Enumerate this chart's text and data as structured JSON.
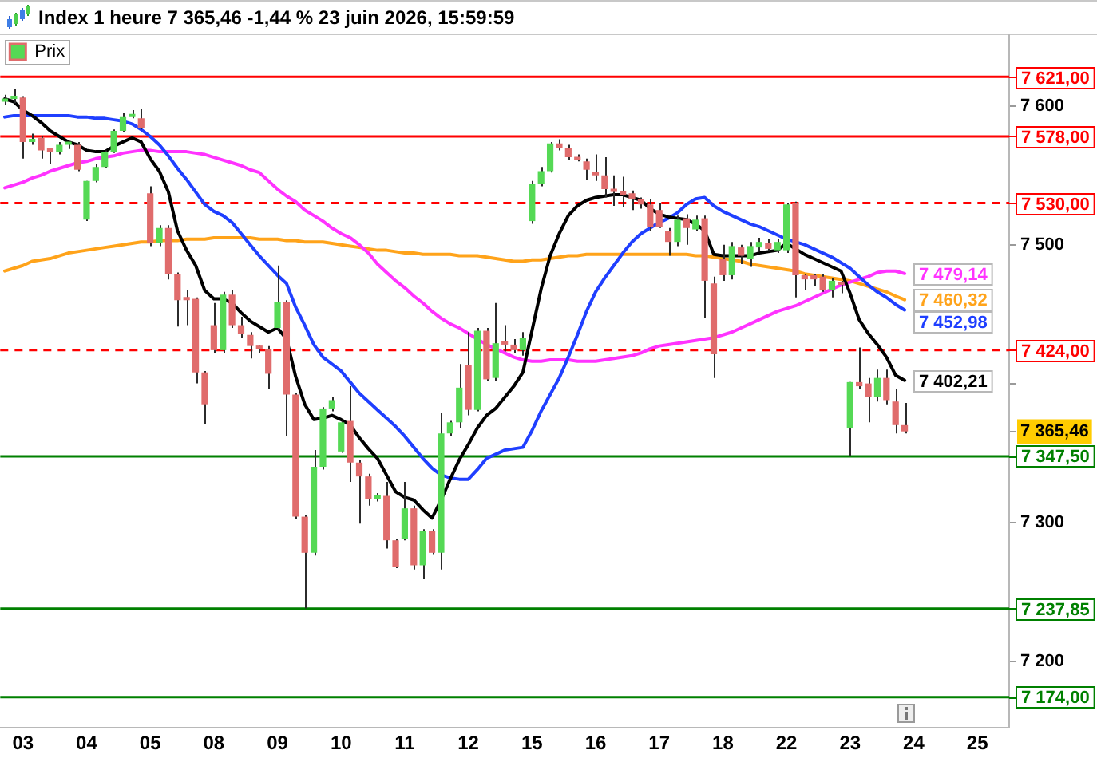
{
  "chart_data": {
    "type": "candlestick",
    "title": "Index 1 heure 7 365,46 -1,44 % 23 juin 2026, 15:59:59",
    "categories": [
      null,
      null,
      "03",
      null,
      null,
      null,
      null,
      null,
      null,
      "04",
      null,
      null,
      null,
      null,
      null,
      null,
      "05",
      null,
      null,
      null,
      null,
      null,
      null,
      "08",
      null,
      null,
      null,
      null,
      null,
      null,
      "09",
      null,
      null,
      null,
      null,
      null,
      null,
      "10",
      null,
      null,
      null,
      null,
      null,
      null,
      "11",
      null,
      null,
      null,
      null,
      null,
      null,
      "12",
      null,
      null,
      null,
      null,
      null,
      null,
      "15",
      null,
      null,
      null,
      null,
      null,
      null,
      "16",
      null,
      null,
      null,
      null,
      null,
      null,
      "17",
      null,
      null,
      null,
      null,
      null,
      null,
      "18",
      null,
      null,
      null,
      null,
      null,
      null,
      "22",
      null,
      null,
      null,
      null,
      null,
      null,
      "23",
      null,
      null,
      null,
      null,
      null,
      null,
      "24",
      null,
      null,
      null,
      null,
      null,
      null,
      "25",
      null,
      null,
      null
    ],
    "series": [
      {
        "name": "Prix",
        "ohlc": [
          [
            7603,
            7608,
            7601,
            7605
          ],
          [
            7605,
            7612,
            7602,
            7606
          ],
          [
            7606,
            7607,
            7562,
            7574
          ],
          [
            7574,
            7580,
            7572,
            7575
          ],
          [
            7577,
            7578,
            7562,
            7568
          ],
          [
            7568,
            7569,
            7558,
            7567
          ],
          [
            7567,
            7574,
            7565,
            7572
          ],
          [
            7572,
            7574,
            7569,
            7573
          ],
          [
            7572,
            7574,
            7553,
            7554
          ],
          [
            7518,
            7546,
            7517,
            7546
          ],
          [
            7546,
            7558,
            7545,
            7556
          ],
          [
            7556,
            7568,
            7555,
            7567
          ],
          [
            7567,
            7583,
            7566,
            7582
          ],
          [
            7582,
            7595,
            7581,
            7592
          ],
          [
            7592,
            7597,
            7591,
            7594
          ],
          [
            7591,
            7598,
            7583,
            7584
          ],
          [
            7537,
            7542,
            7499,
            7501
          ],
          [
            7501,
            7514,
            7499,
            7512
          ],
          [
            7512,
            7514,
            7475,
            7479
          ],
          [
            7479,
            7480,
            7441,
            7460
          ],
          [
            7461,
            7467,
            7442,
            7460
          ],
          [
            7461,
            7462,
            7400,
            7408
          ],
          [
            7408,
            7409,
            7371,
            7385
          ],
          [
            7442,
            7458,
            7422,
            7424
          ],
          [
            7424,
            7466,
            7422,
            7464
          ],
          [
            7464,
            7467,
            7440,
            7442
          ],
          [
            7442,
            7448,
            7433,
            7436
          ],
          [
            7435,
            7437,
            7418,
            7427
          ],
          [
            7426,
            7428,
            7422,
            7425
          ],
          [
            7425,
            7427,
            7396,
            7407
          ],
          [
            7440,
            7485,
            7438,
            7459
          ],
          [
            7459,
            7460,
            7362,
            7392
          ],
          [
            7392,
            7393,
            7302,
            7304
          ],
          [
            7304,
            7305,
            7238,
            7278
          ],
          [
            7278,
            7352,
            7276,
            7340
          ],
          [
            7340,
            7383,
            7338,
            7382
          ],
          [
            7382,
            7390,
            7380,
            7388
          ],
          [
            7351,
            7373,
            7350,
            7372
          ],
          [
            7373,
            7398,
            7329,
            7343
          ],
          [
            7343,
            7345,
            7299,
            7333
          ],
          [
            7333,
            7335,
            7312,
            7317
          ],
          [
            7317,
            7321,
            7315,
            7319
          ],
          [
            7319,
            7329,
            7281,
            7287
          ],
          [
            7287,
            7288,
            7267,
            7268
          ],
          [
            7288,
            7329,
            7287,
            7310
          ],
          [
            7310,
            7312,
            7266,
            7269
          ],
          [
            7269,
            7295,
            7259,
            7294
          ],
          [
            7294,
            7295,
            7277,
            7278
          ],
          [
            7278,
            7379,
            7266,
            7364
          ],
          [
            7364,
            7373,
            7362,
            7372
          ],
          [
            7372,
            7414,
            7368,
            7397
          ],
          [
            7413,
            7437,
            7377,
            7381
          ],
          [
            7381,
            7440,
            7380,
            7438
          ],
          [
            7438,
            7440,
            7402,
            7403
          ],
          [
            7404,
            7458,
            7402,
            7429
          ],
          [
            7430,
            7442,
            7423,
            7428
          ],
          [
            7428,
            7432,
            7422,
            7424
          ],
          [
            7424,
            7437,
            7420,
            7433
          ],
          [
            7517,
            7546,
            7515,
            7544
          ],
          [
            7544,
            7556,
            7542,
            7553
          ],
          [
            7553,
            7574,
            7552,
            7573
          ],
          [
            7573,
            7576,
            7568,
            7570
          ],
          [
            7570,
            7572,
            7561,
            7563
          ],
          [
            7563,
            7565,
            7560,
            7561
          ],
          [
            7560,
            7562,
            7547,
            7554
          ],
          [
            7551,
            7565,
            7546,
            7550
          ],
          [
            7550,
            7563,
            7534,
            7540
          ],
          [
            7540,
            7550,
            7528,
            7538
          ],
          [
            7538,
            7549,
            7527,
            7536
          ],
          [
            7537,
            7539,
            7525,
            7533
          ],
          [
            7533,
            7534,
            7526,
            7529
          ],
          [
            7529,
            7533,
            7510,
            7513
          ],
          [
            7525,
            7530,
            7512,
            7513
          ],
          [
            7510,
            7512,
            7492,
            7502
          ],
          [
            7502,
            7521,
            7499,
            7518
          ],
          [
            7519,
            7522,
            7500,
            7512
          ],
          [
            7511,
            7521,
            7510,
            7518
          ],
          [
            7519,
            7521,
            7447,
            7474
          ],
          [
            7472,
            7477,
            7404,
            7421
          ],
          [
            7490,
            7500,
            7474,
            7478
          ],
          [
            7478,
            7502,
            7475,
            7499
          ],
          [
            7498,
            7500,
            7486,
            7492
          ],
          [
            7490,
            7502,
            7484,
            7499
          ],
          [
            7498,
            7505,
            7495,
            7502
          ],
          [
            7501,
            7504,
            7495,
            7497
          ],
          [
            7496,
            7504,
            7494,
            7502
          ],
          [
            7496,
            7530,
            7494,
            7529
          ],
          [
            7530,
            7531,
            7462,
            7478
          ],
          [
            7478,
            7479,
            7467,
            7475
          ],
          [
            7478,
            7479,
            7470,
            7475
          ],
          [
            7477,
            7479,
            7466,
            7467
          ],
          [
            7467,
            7476,
            7462,
            7474
          ],
          [
            7472,
            7474,
            7465,
            7471
          ],
          [
            7368,
            7401,
            7348,
            7401
          ],
          [
            7401,
            7426,
            7396,
            7398
          ],
          [
            7400,
            7404,
            7372,
            7390
          ],
          [
            7390,
            7410,
            7387,
            7404
          ],
          [
            7404,
            7410,
            7385,
            7388
          ],
          [
            7387,
            7396,
            7364,
            7370
          ],
          [
            7370,
            7386,
            7364,
            7365.46
          ],
          null,
          null,
          null,
          null,
          null,
          null,
          null,
          null,
          null,
          null,
          null
        ],
        "colors": [
          "#55d955",
          "#55d955",
          "#e06c6c",
          "#55d955",
          "#e06c6c",
          "#e06c6c",
          "#55d955",
          "#55d955",
          "#e06c6c",
          "#55d955",
          "#55d955",
          "#55d955",
          "#55d955",
          "#55d955",
          "#55d955",
          "#e06c6c",
          "#e06c6c",
          "#55d955",
          "#e06c6c",
          "#e06c6c",
          "#e06c6c",
          "#e06c6c",
          "#e06c6c",
          "#e06c6c",
          "#55d955",
          "#e06c6c",
          "#e06c6c",
          "#e06c6c",
          "#e06c6c",
          "#e06c6c",
          "#55d955",
          "#e06c6c",
          "#e06c6c",
          "#e06c6c",
          "#55d955",
          "#55d955",
          "#55d955",
          "#55d955",
          "#e06c6c",
          "#e06c6c",
          "#e06c6c",
          "#55d955",
          "#e06c6c",
          "#e06c6c",
          "#55d955",
          "#e06c6c",
          "#55d955",
          "#e06c6c",
          "#55d955",
          "#55d955",
          "#55d955",
          "#e06c6c",
          "#55d955",
          "#e06c6c",
          "#55d955",
          "#e06c6c",
          "#e06c6c",
          "#55d955",
          "#55d955",
          "#55d955",
          "#55d955",
          "#e06c6c",
          "#e06c6c",
          "#e06c6c",
          "#e06c6c",
          "#e06c6c",
          "#e06c6c",
          "#e06c6c",
          "#e06c6c",
          "#e06c6c",
          "#e06c6c",
          "#e06c6c",
          "#e06c6c",
          "#e06c6c",
          "#55d955",
          "#e06c6c",
          "#55d955",
          "#e06c6c",
          "#e06c6c",
          "#e06c6c",
          "#55d955",
          "#e06c6c",
          "#55d955",
          "#55d955",
          "#e06c6c",
          "#55d955",
          "#55d955",
          "#e06c6c",
          "#e06c6c",
          "#e06c6c",
          "#e06c6c",
          "#55d955",
          "#e06c6c",
          "#55d955",
          "#e06c6c",
          "#e06c6c",
          "#55d955",
          "#e06c6c",
          "#e06c6c",
          "#e06c6c",
          null,
          null,
          null,
          null,
          null,
          null,
          null,
          null,
          null,
          null,
          null
        ]
      },
      {
        "type": "line",
        "color": "#000000",
        "values": [
          7605,
          7603,
          7597,
          7593,
          7588,
          7582,
          7578,
          7574,
          7572,
          7568,
          7567,
          7567,
          7571,
          7574,
          7577,
          7574,
          7562,
          7553,
          7538,
          7510,
          7496,
          7485,
          7467,
          7461,
          7461,
          7458,
          7451,
          7445,
          7441,
          7437,
          7440,
          7432,
          7405,
          7385,
          7374,
          7375,
          7377,
          7374,
          7370,
          7361,
          7353,
          7346,
          7334,
          7322,
          7318,
          7316,
          7309,
          7303,
          7316,
          7331,
          7345,
          7356,
          7368,
          7377,
          7382,
          7390,
          7398,
          7408,
          7438,
          7468,
          7492,
          7508,
          7521,
          7528,
          7532,
          7534,
          7535,
          7536,
          7536,
          7534,
          7532,
          7526,
          7522,
          7520,
          7519,
          7518,
          7515,
          7510,
          7493,
          7492,
          7492,
          7492,
          7492,
          7494,
          7495,
          7496,
          7501,
          7497,
          7493,
          7490,
          7487,
          7484,
          7481,
          7465,
          7446,
          7436,
          7428,
          7419,
          7406,
          7402.21,
          null,
          null,
          null,
          null,
          null,
          null,
          null,
          null,
          null,
          null,
          null
        ],
        "value_labels": [
          null,
          null,
          null,
          null,
          null,
          null,
          null,
          null,
          null,
          null,
          null,
          null,
          null,
          null,
          null,
          null,
          null,
          null,
          null,
          null,
          null,
          null,
          null,
          null,
          null,
          null,
          null,
          null,
          null,
          null,
          null,
          null,
          null,
          null,
          null,
          null,
          null,
          null,
          null,
          null,
          null,
          null,
          null,
          null,
          null,
          null,
          null,
          null,
          null,
          null,
          null,
          null,
          null,
          null,
          null,
          null,
          null,
          null,
          null,
          null,
          null,
          null,
          null,
          null,
          null,
          null,
          null,
          null,
          null,
          null,
          null,
          null,
          null,
          null,
          null,
          null,
          null,
          null,
          null,
          null,
          null,
          null,
          null,
          null,
          null,
          null,
          null,
          null,
          null,
          null,
          null,
          null,
          null,
          null,
          null,
          null,
          null,
          null,
          null,
          "7 402,21",
          null,
          null,
          null,
          null,
          null,
          null,
          null,
          null,
          null,
          null,
          null
        ]
      },
      {
        "type": "line",
        "color": "#1f3fff",
        "values": [
          7592,
          7593,
          7593,
          7593,
          7593,
          7593,
          7593,
          7593,
          7592,
          7592,
          7591,
          7591,
          7590,
          7589,
          7587,
          7583,
          7578,
          7572,
          7564,
          7555,
          7547,
          7538,
          7529,
          7524,
          7521,
          7516,
          7508,
          7500,
          7492,
          7485,
          7478,
          7472,
          7455,
          7442,
          7428,
          7419,
          7414,
          7409,
          7401,
          7393,
          7387,
          7381,
          7375,
          7369,
          7362,
          7354,
          7346,
          7339,
          7334,
          7332,
          7331,
          7331,
          7338,
          7346,
          7349,
          7352,
          7353,
          7354,
          7366,
          7380,
          7392,
          7404,
          7419,
          7435,
          7452,
          7466,
          7476,
          7485,
          7494,
          7502,
          7508,
          7512,
          7516,
          7519,
          7523,
          7529,
          7533,
          7534,
          7528,
          7524,
          7521,
          7518,
          7515,
          7513,
          7510,
          7507,
          7504,
          7502,
          7500,
          7497,
          7494,
          7491,
          7487,
          7483,
          7477,
          7471,
          7466,
          7462,
          7457,
          7452.98,
          null,
          null,
          null,
          null,
          null,
          null,
          null,
          null,
          null,
          null,
          null
        ],
        "value_labels": [
          null,
          null,
          null,
          null,
          null,
          null,
          null,
          null,
          null,
          null,
          null,
          null,
          null,
          null,
          null,
          null,
          null,
          null,
          null,
          null,
          null,
          null,
          null,
          null,
          null,
          null,
          null,
          null,
          null,
          null,
          null,
          null,
          null,
          null,
          null,
          null,
          null,
          null,
          null,
          null,
          null,
          null,
          null,
          null,
          null,
          null,
          null,
          null,
          null,
          null,
          null,
          null,
          null,
          null,
          null,
          null,
          null,
          null,
          null,
          null,
          null,
          null,
          null,
          null,
          null,
          null,
          null,
          null,
          null,
          null,
          null,
          null,
          null,
          null,
          null,
          null,
          null,
          null,
          null,
          null,
          null,
          null,
          null,
          null,
          null,
          null,
          null,
          null,
          null,
          null,
          null,
          null,
          null,
          null,
          null,
          null,
          null,
          null,
          null,
          "7 452,98",
          null,
          null,
          null,
          null,
          null,
          null,
          null,
          null,
          null,
          null,
          null
        ]
      },
      {
        "type": "line",
        "color": "#ff33ff",
        "values": [
          7541,
          7543,
          7545,
          7548,
          7550,
          7553,
          7555,
          7557,
          7559,
          7560,
          7562,
          7563,
          7564,
          7566,
          7567,
          7568,
          7568,
          7567,
          7567,
          7567,
          7567,
          7566,
          7565,
          7563,
          7561,
          7559,
          7557,
          7554,
          7552,
          7546,
          7540,
          7535,
          7531,
          7525,
          7521,
          7517,
          7512,
          7508,
          7505,
          7500,
          7494,
          7486,
          7480,
          7474,
          7469,
          7463,
          7458,
          7452,
          7447,
          7443,
          7440,
          7436,
          7432,
          7428,
          7425,
          7422,
          7419,
          7417,
          7416,
          7416,
          7417,
          7417,
          7417,
          7416,
          7416,
          7416,
          7417,
          7418,
          7419,
          7420,
          7422,
          7425,
          7427,
          7428,
          7429,
          7430,
          7431,
          7432,
          7433,
          7435,
          7437,
          7440,
          7443,
          7446,
          7449,
          7452,
          7454,
          7456,
          7459,
          7462,
          7465,
          7468,
          7471,
          7473,
          7475,
          7477,
          7480,
          7481,
          7481,
          7479.14,
          null,
          null,
          null,
          null,
          null,
          null,
          null,
          null,
          null,
          null,
          null
        ],
        "value_labels": [
          null,
          null,
          null,
          null,
          null,
          null,
          null,
          null,
          null,
          null,
          null,
          null,
          null,
          null,
          null,
          null,
          null,
          null,
          null,
          null,
          null,
          null,
          null,
          null,
          null,
          null,
          null,
          null,
          null,
          null,
          null,
          null,
          null,
          null,
          null,
          null,
          null,
          null,
          null,
          null,
          null,
          null,
          null,
          null,
          null,
          null,
          null,
          null,
          null,
          null,
          null,
          null,
          null,
          null,
          null,
          null,
          null,
          null,
          null,
          null,
          null,
          null,
          null,
          null,
          null,
          null,
          null,
          null,
          null,
          null,
          null,
          null,
          null,
          null,
          null,
          null,
          null,
          null,
          null,
          null,
          null,
          null,
          null,
          null,
          null,
          null,
          null,
          null,
          null,
          null,
          null,
          null,
          null,
          null,
          null,
          null,
          null,
          null,
          null,
          "7 479,14",
          null,
          null,
          null,
          null,
          null,
          null,
          null,
          null,
          null,
          null,
          null
        ]
      },
      {
        "type": "line",
        "color": "#ffa31a",
        "values": [
          7481,
          7483,
          7485,
          7488,
          7489,
          7490,
          7492,
          7494,
          7495,
          7496,
          7497,
          7498,
          7499,
          7500,
          7501,
          7502,
          7502,
          7503,
          7503,
          7503,
          7504,
          7504,
          7504,
          7505,
          7505,
          7505,
          7505,
          7505,
          7504,
          7504,
          7504,
          7503,
          7503,
          7502,
          7502,
          7502,
          7501,
          7500,
          7499,
          7498,
          7497,
          7496,
          7496,
          7495,
          7494,
          7494,
          7493,
          7493,
          7493,
          7493,
          7492,
          7492,
          7492,
          7491,
          7490,
          7489,
          7488,
          7488,
          7489,
          7489,
          7490,
          7491,
          7492,
          7492,
          7493,
          7493,
          7493,
          7493,
          7493,
          7493,
          7493,
          7493,
          7493,
          7493,
          7493,
          7493,
          7492,
          7492,
          7491,
          7490,
          7489,
          7488,
          7486,
          7485,
          7484,
          7483,
          7482,
          7481,
          7479,
          7478,
          7477,
          7476,
          7475,
          7474,
          7472,
          7470,
          7468,
          7466,
          7463,
          7460.32,
          null,
          null,
          null,
          null,
          null,
          null,
          null,
          null,
          null,
          null,
          null
        ],
        "value_labels": [
          null,
          null,
          null,
          null,
          null,
          null,
          null,
          null,
          null,
          null,
          null,
          null,
          null,
          null,
          null,
          null,
          null,
          null,
          null,
          null,
          null,
          null,
          null,
          null,
          null,
          null,
          null,
          null,
          null,
          null,
          null,
          null,
          null,
          null,
          null,
          null,
          null,
          null,
          null,
          null,
          null,
          null,
          null,
          null,
          null,
          null,
          null,
          null,
          null,
          null,
          null,
          null,
          null,
          null,
          null,
          null,
          null,
          null,
          null,
          null,
          null,
          null,
          null,
          null,
          null,
          null,
          null,
          null,
          null,
          null,
          null,
          null,
          null,
          null,
          null,
          null,
          null,
          null,
          null,
          null,
          null,
          null,
          null,
          null,
          null,
          null,
          null,
          null,
          null,
          null,
          null,
          null,
          null,
          null,
          null,
          null,
          null,
          null,
          null,
          "7 460,32",
          null,
          null,
          null,
          null,
          null,
          null,
          null,
          null,
          null,
          null,
          null
        ]
      }
    ],
    "ylim": [
      7152,
      7651
    ],
    "yticks": [
      {
        "value": 7600,
        "label": "7 600"
      },
      {
        "value": 7500,
        "label": "7 500"
      },
      {
        "value": 7400,
        "label": null
      },
      {
        "value": 7365.46,
        "label": "7 365,46"
      },
      {
        "value": 7300,
        "label": "7 300"
      },
      {
        "value": 7200,
        "label": "7 200"
      }
    ],
    "legend": "top left",
    "ref_lines": [
      {
        "axis": "y",
        "value": 7621,
        "label": "7 621,00",
        "color": "#ff0000",
        "line_style": "solid"
      },
      {
        "axis": "y",
        "value": 7578,
        "label": "7 578,00",
        "color": "#ff0000",
        "line_style": "solid"
      },
      {
        "axis": "y",
        "value": 7530,
        "label": "7 530,00",
        "color": "#ff0000",
        "line_style": "dashed"
      },
      {
        "axis": "y",
        "value": 7424,
        "label": "7 424,00",
        "color": "#ff0000",
        "line_style": "dashed"
      },
      {
        "axis": "y",
        "value": 7347.5,
        "label": "7 347,50",
        "color": "#008000",
        "line_style": "solid"
      },
      {
        "axis": "y",
        "value": 7237.85,
        "label": "7 237,85",
        "color": "#008000",
        "line_style": "solid"
      },
      {
        "axis": "y",
        "value": 7174,
        "label": "7 174,00",
        "color": "#008000",
        "line_style": "solid"
      }
    ]
  }
}
